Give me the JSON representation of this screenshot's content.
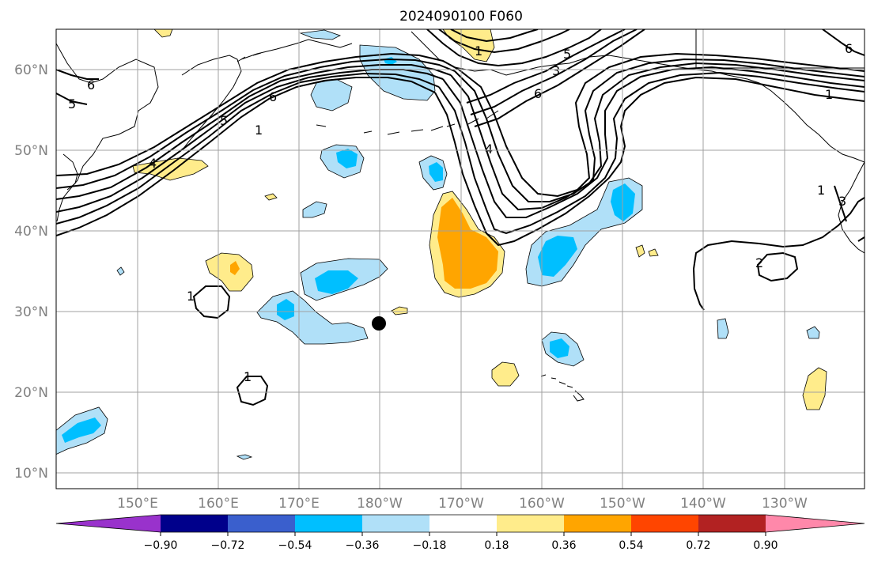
{
  "title": "2024090100 F060",
  "lat_labels": [
    "10°N",
    "20°N",
    "30°N",
    "40°N",
    "50°N",
    "60°N"
  ],
  "lon_labels": [
    "150°E",
    "160°E",
    "170°E",
    "180°W",
    "170°W",
    "160°W",
    "150°W",
    "140°W",
    "130°W"
  ],
  "contour_labels": [
    "6",
    "5",
    "6",
    "5",
    "1",
    "4",
    "1",
    "1",
    "1",
    "6",
    "5",
    "3",
    "4",
    "1",
    "3",
    "2",
    "6",
    "1"
  ],
  "colorbar": {
    "colors": [
      "#9932cc",
      "#00008b",
      "#3a5fcd",
      "#00bfff",
      "#b0e0f8",
      "#ffffff",
      "#ffec8b",
      "#ffa500",
      "#ff4500",
      "#b22222",
      "#ff88aa"
    ],
    "tick_labels": [
      "−0.90",
      "−0.72",
      "−0.54",
      "−0.36",
      "−0.18",
      "0.18",
      "0.36",
      "0.54",
      "0.72",
      "0.90"
    ]
  },
  "colors": {
    "light_blue": "#b0e0f8",
    "blue": "#00bfff",
    "light_yellow": "#ffec8b",
    "orange": "#ffa500",
    "axis_text": "#808080",
    "grid": "#a0a0a0"
  }
}
